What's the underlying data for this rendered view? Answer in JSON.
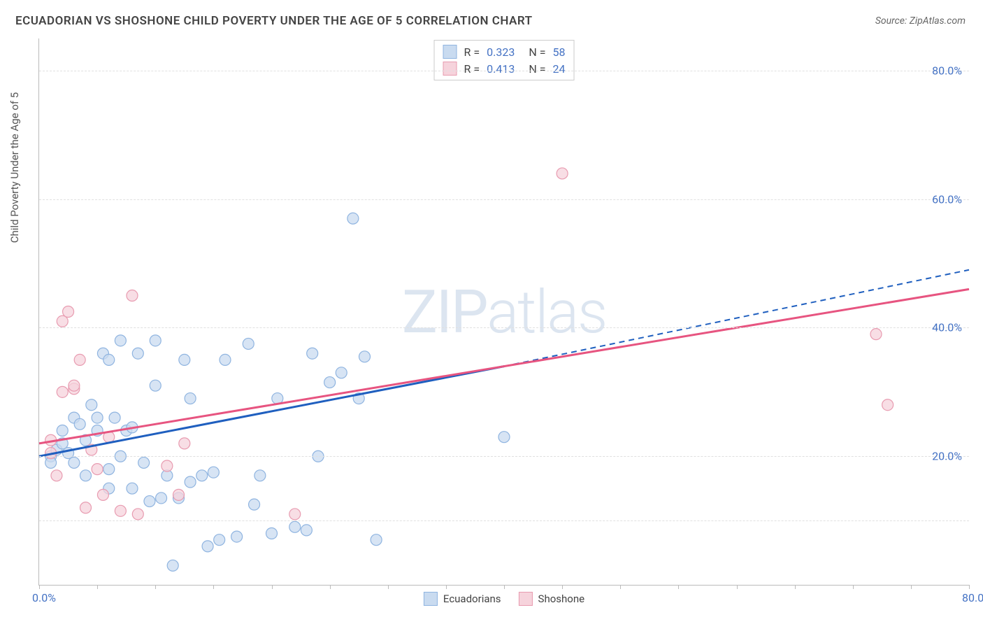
{
  "title": "ECUADORIAN VS SHOSHONE CHILD POVERTY UNDER THE AGE OF 5 CORRELATION CHART",
  "source": "Source: ZipAtlas.com",
  "watermark": {
    "prefix": "ZIP",
    "suffix": "atlas"
  },
  "y_title": "Child Poverty Under the Age of 5",
  "axis": {
    "xmin": 0,
    "xmax": 80,
    "ymin": 0,
    "ymax": 85,
    "x_ticks": [
      0,
      80
    ],
    "x_tick_labels": [
      "0.0%",
      "80.0%"
    ],
    "y_ticks": [
      20,
      40,
      60,
      80
    ],
    "y_tick_labels": [
      "20.0%",
      "40.0%",
      "60.0%",
      "80.0%"
    ],
    "grid_y": [
      10,
      20,
      40,
      60,
      80
    ],
    "xtick_minor": [
      0,
      5,
      10,
      15,
      20,
      25,
      30,
      35,
      40,
      45,
      50,
      55,
      60,
      65,
      70,
      75,
      80
    ],
    "axis_color": "#bbbbbb",
    "grid_color": "#e0e0e0",
    "label_color": "#4472c4"
  },
  "series": [
    {
      "name": "Ecuadorians",
      "color_fill": "#c9dbf0",
      "color_stroke": "#8fb4e0",
      "marker_radius": 8,
      "reg_line": {
        "x1": 0,
        "y1": 20,
        "x2": 40,
        "y2": 34,
        "solid_color": "#1f5fbf",
        "dash_x2": 80,
        "dash_y2": 49
      },
      "stats": {
        "R": "0.323",
        "N": "58"
      },
      "points": [
        [
          1,
          20
        ],
        [
          1,
          19
        ],
        [
          1.5,
          21
        ],
        [
          2,
          22
        ],
        [
          2,
          24
        ],
        [
          2.5,
          20.5
        ],
        [
          3,
          19
        ],
        [
          3,
          26
        ],
        [
          3.5,
          25
        ],
        [
          4,
          22.5
        ],
        [
          4,
          17
        ],
        [
          4.5,
          28
        ],
        [
          5,
          24
        ],
        [
          5,
          26
        ],
        [
          5.5,
          36
        ],
        [
          6,
          18
        ],
        [
          6,
          15
        ],
        [
          6.5,
          26
        ],
        [
          7,
          20
        ],
        [
          7,
          38
        ],
        [
          7.5,
          24
        ],
        [
          8,
          15
        ],
        [
          8,
          24.5
        ],
        [
          8.5,
          36
        ],
        [
          9,
          19
        ],
        [
          9.5,
          13
        ],
        [
          10,
          31
        ],
        [
          10,
          38
        ],
        [
          10.5,
          13.5
        ],
        [
          11,
          17
        ],
        [
          11.5,
          3
        ],
        [
          12,
          13.5
        ],
        [
          12.5,
          35
        ],
        [
          13,
          29
        ],
        [
          13,
          16
        ],
        [
          14,
          17
        ],
        [
          14.5,
          6
        ],
        [
          15,
          17.5
        ],
        [
          15.5,
          7
        ],
        [
          16,
          35
        ],
        [
          17,
          7.5
        ],
        [
          18,
          37.5
        ],
        [
          18.5,
          12.5
        ],
        [
          19,
          17
        ],
        [
          20,
          8
        ],
        [
          20.5,
          29
        ],
        [
          22,
          9
        ],
        [
          23,
          8.5
        ],
        [
          23.5,
          36
        ],
        [
          24,
          20
        ],
        [
          25,
          31.5
        ],
        [
          26,
          33
        ],
        [
          27,
          57
        ],
        [
          27.5,
          29
        ],
        [
          28,
          35.5
        ],
        [
          29,
          7
        ],
        [
          40,
          23
        ],
        [
          6,
          35
        ]
      ]
    },
    {
      "name": "Shoshone",
      "color_fill": "#f6d3dc",
      "color_stroke": "#e89bb0",
      "marker_radius": 8,
      "reg_line": {
        "x1": 0,
        "y1": 22,
        "x2": 80,
        "y2": 46,
        "solid_color": "#e75480"
      },
      "stats": {
        "R": "0.413",
        "N": "24"
      },
      "points": [
        [
          1,
          20.5
        ],
        [
          1.5,
          17
        ],
        [
          2,
          30
        ],
        [
          2,
          41
        ],
        [
          2.5,
          42.5
        ],
        [
          3,
          30.5
        ],
        [
          3,
          31
        ],
        [
          3.5,
          35
        ],
        [
          4,
          12
        ],
        [
          4.5,
          21
        ],
        [
          5,
          18
        ],
        [
          5.5,
          14
        ],
        [
          6,
          23
        ],
        [
          7,
          11.5
        ],
        [
          8,
          45
        ],
        [
          8.5,
          11
        ],
        [
          11,
          18.5
        ],
        [
          12,
          14
        ],
        [
          12.5,
          22
        ],
        [
          22,
          11
        ],
        [
          45,
          64
        ],
        [
          72,
          39
        ],
        [
          73,
          28
        ],
        [
          1,
          22.5
        ]
      ]
    }
  ],
  "legend_bottom": [
    {
      "label": "Ecuadorians",
      "fill": "#c9dbf0",
      "stroke": "#8fb4e0"
    },
    {
      "label": "Shoshone",
      "fill": "#f6d3dc",
      "stroke": "#e89bb0"
    }
  ]
}
